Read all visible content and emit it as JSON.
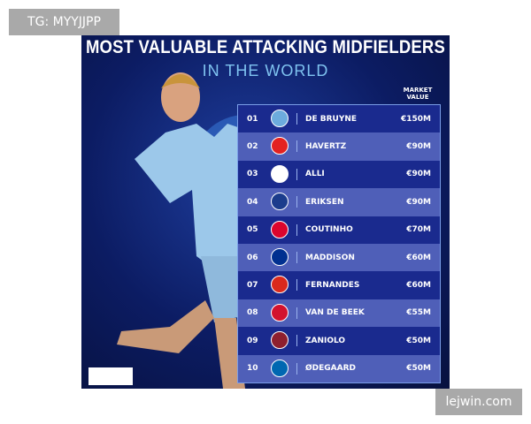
{
  "watermark": "TG: MYYJJPP",
  "header": {
    "title": "MOST VALUABLE ATTACKING MIDFIELDERS",
    "subtitle": "IN THE WORLD"
  },
  "table": {
    "column_header": "MARKET VALUE",
    "rows": [
      {
        "rank": "01",
        "player": "DE BRUYNE",
        "value": "€150M"
      },
      {
        "rank": "02",
        "player": "HAVERTZ",
        "value": "€90M"
      },
      {
        "rank": "03",
        "player": "ALLI",
        "value": "€90M"
      },
      {
        "rank": "04",
        "player": "ERIKSEN",
        "value": "€90M"
      },
      {
        "rank": "05",
        "player": "COUTINHO",
        "value": "€70M"
      },
      {
        "rank": "06",
        "player": "MADDISON",
        "value": "€60M"
      },
      {
        "rank": "07",
        "player": "FERNANDES",
        "value": "€60M"
      },
      {
        "rank": "08",
        "player": "VAN DE BEEK",
        "value": "€55M"
      },
      {
        "rank": "09",
        "player": "ZANIOLO",
        "value": "€50M"
      },
      {
        "rank": "10",
        "player": "ØDEGAARD",
        "value": "€50M"
      }
    ]
  },
  "footer": "lejwin.com"
}
